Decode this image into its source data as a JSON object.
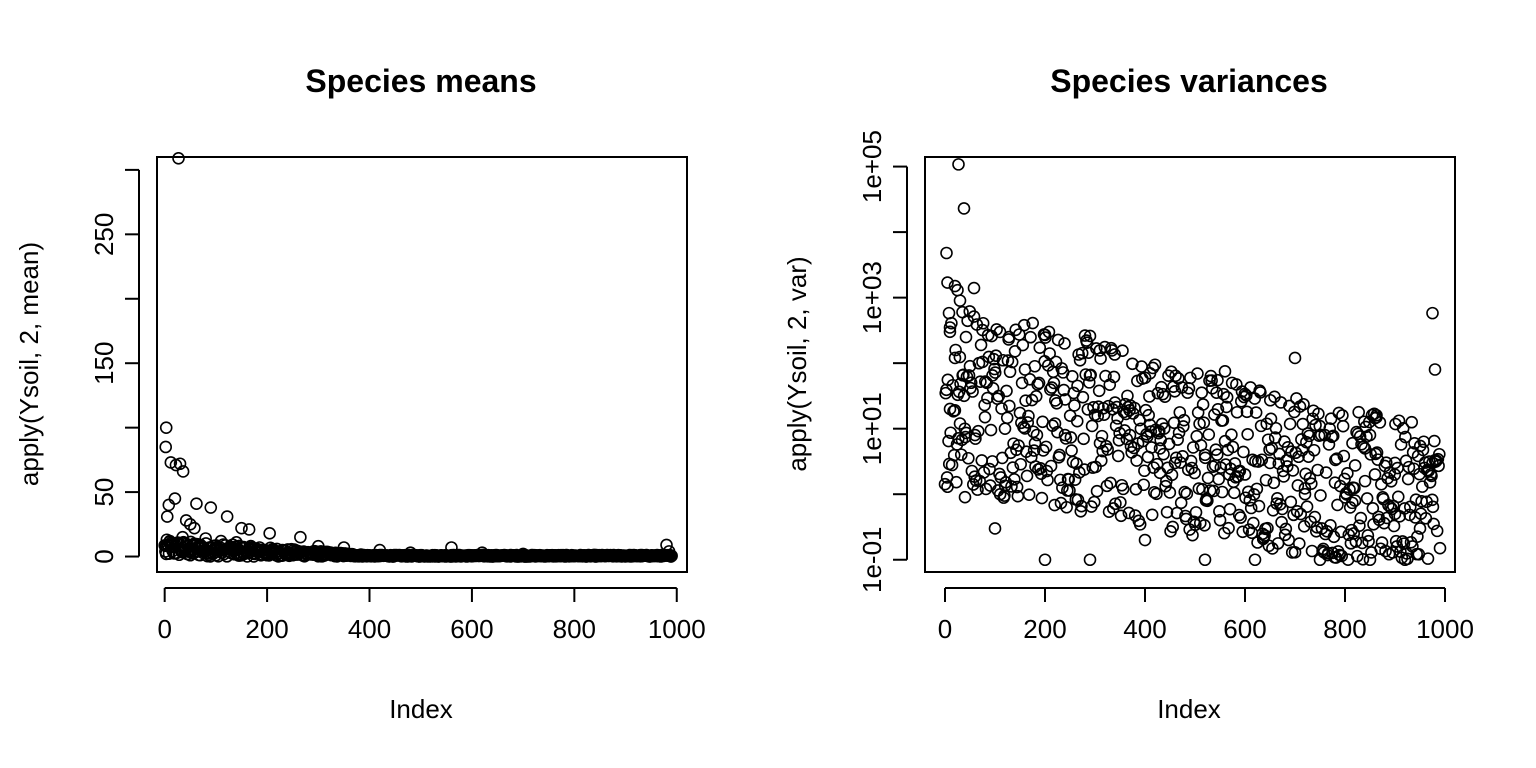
{
  "chart_data": [
    {
      "type": "scatter",
      "title": "Species means",
      "xlabel": "Index",
      "ylabel": "apply(Ysoil, 2, mean)",
      "xlim": [
        -15,
        1020
      ],
      "ylim": [
        -12,
        310
      ],
      "x_ticks": [
        0,
        200,
        400,
        600,
        800,
        1000
      ],
      "x_tick_labels": [
        "0",
        "200",
        "400",
        "600",
        "800",
        "1000"
      ],
      "y_ticks": [
        0,
        50,
        150,
        250
      ],
      "y_tick_labels": [
        "0",
        "50",
        "150",
        "250"
      ],
      "y_minor_ticks": [
        100,
        200,
        300
      ],
      "log_y": false,
      "grid": false,
      "legend": "none",
      "marker": "open-circle",
      "color": "#000000",
      "points": [
        [
          27,
          309
        ],
        [
          3,
          100
        ],
        [
          2,
          85
        ],
        [
          12,
          73
        ],
        [
          22,
          71
        ],
        [
          30,
          72
        ],
        [
          36,
          66
        ],
        [
          20,
          45
        ],
        [
          8,
          40
        ],
        [
          62,
          41
        ],
        [
          90,
          38
        ],
        [
          122,
          31
        ],
        [
          5,
          31
        ],
        [
          42,
          28
        ],
        [
          50,
          25
        ],
        [
          58,
          22
        ],
        [
          150,
          22
        ],
        [
          165,
          21
        ],
        [
          205,
          18
        ],
        [
          265,
          15
        ],
        [
          35,
          15
        ],
        [
          80,
          14
        ],
        [
          110,
          12
        ],
        [
          140,
          11
        ],
        [
          10,
          12
        ],
        [
          25,
          10
        ],
        [
          70,
          9
        ],
        [
          15,
          8
        ],
        [
          45,
          8
        ],
        [
          100,
          7
        ],
        [
          130,
          6
        ],
        [
          180,
          6
        ],
        [
          230,
          5
        ],
        [
          300,
          8
        ],
        [
          350,
          7
        ],
        [
          420,
          5
        ],
        [
          560,
          7
        ],
        [
          480,
          3
        ],
        [
          620,
          3
        ],
        [
          700,
          2
        ],
        [
          980,
          9
        ],
        [
          985,
          4
        ],
        [
          3,
          2
        ],
        [
          50,
          1
        ],
        [
          100,
          1
        ],
        [
          150,
          1
        ],
        [
          200,
          1
        ],
        [
          250,
          1
        ],
        [
          300,
          1
        ],
        [
          350,
          1
        ],
        [
          400,
          1
        ],
        [
          450,
          1
        ],
        [
          500,
          1
        ],
        [
          550,
          1
        ],
        [
          600,
          1
        ],
        [
          650,
          1
        ],
        [
          700,
          0.5
        ],
        [
          750,
          0.5
        ],
        [
          800,
          0.5
        ],
        [
          850,
          0.5
        ],
        [
          900,
          0.5
        ],
        [
          950,
          0.5
        ],
        [
          990,
          0.5
        ]
      ],
      "dense_band": {
        "x_range": [
          0,
          990
        ],
        "y_range": [
          0,
          4
        ],
        "count": 700
      }
    },
    {
      "type": "scatter",
      "title": "Species variances",
      "xlabel": "Index",
      "ylabel": "apply(Ysoil, 2, var)",
      "xlim": [
        -40,
        1020
      ],
      "ylim": [
        0.065,
        140000
      ],
      "x_ticks": [
        0,
        200,
        400,
        600,
        800,
        1000
      ],
      "x_tick_labels": [
        "0",
        "200",
        "400",
        "600",
        "800",
        "1000"
      ],
      "y_ticks": [
        0.1,
        10,
        1000,
        100000
      ],
      "y_tick_labels": [
        "1e-01",
        "1e+01",
        "1e+03",
        "1e+05"
      ],
      "y_minor_ticks": [
        1,
        100,
        10000
      ],
      "log_y": true,
      "grid": false,
      "legend": "none",
      "marker": "open-circle",
      "color": "#000000",
      "points": [
        [
          27,
          108000
        ],
        [
          38,
          23000
        ],
        [
          3,
          4800
        ],
        [
          5,
          1700
        ],
        [
          20,
          1500
        ],
        [
          25,
          1300
        ],
        [
          58,
          1400
        ],
        [
          8,
          580
        ],
        [
          35,
          600
        ],
        [
          30,
          900
        ],
        [
          10,
          350
        ],
        [
          42,
          250
        ],
        [
          75,
          320
        ],
        [
          110,
          300
        ],
        [
          128,
          250
        ],
        [
          200,
          270
        ],
        [
          290,
          260
        ],
        [
          975,
          580
        ],
        [
          980,
          80
        ],
        [
          410,
          70
        ],
        [
          560,
          75
        ],
        [
          700,
          120
        ],
        [
          545,
          55
        ],
        [
          20,
          120
        ],
        [
          50,
          90
        ],
        [
          95,
          65
        ],
        [
          160,
          80
        ],
        [
          265,
          45
        ],
        [
          340,
          25
        ],
        [
          10,
          20
        ],
        [
          30,
          12
        ],
        [
          60,
          8
        ],
        [
          80,
          15
        ],
        [
          120,
          10
        ],
        [
          180,
          6
        ],
        [
          220,
          12
        ],
        [
          240,
          8
        ],
        [
          310,
          6
        ],
        [
          370,
          8
        ],
        [
          430,
          5
        ],
        [
          460,
          3
        ],
        [
          520,
          4
        ],
        [
          600,
          2
        ],
        [
          650,
          3
        ],
        [
          720,
          1
        ],
        [
          780,
          1.5
        ],
        [
          820,
          0.8
        ],
        [
          860,
          2
        ],
        [
          900,
          0.5
        ],
        [
          950,
          0.3
        ],
        [
          5,
          1.3
        ],
        [
          40,
          0.9
        ],
        [
          100,
          0.3
        ],
        [
          200,
          0.1
        ],
        [
          290,
          0.1
        ],
        [
          400,
          0.2
        ],
        [
          520,
          0.1
        ],
        [
          620,
          0.1
        ],
        [
          750,
          0.1
        ],
        [
          850,
          0.1
        ],
        [
          920,
          0.1
        ],
        [
          990,
          0.15
        ],
        [
          863,
          16
        ],
        [
          815,
          6
        ],
        [
          840,
          5
        ],
        [
          975,
          3
        ],
        [
          900,
          3
        ]
      ],
      "dense_band": {
        "x_range": [
          0,
          990
        ],
        "y_range": [
          0.1,
          30
        ],
        "count": 700
      }
    }
  ]
}
